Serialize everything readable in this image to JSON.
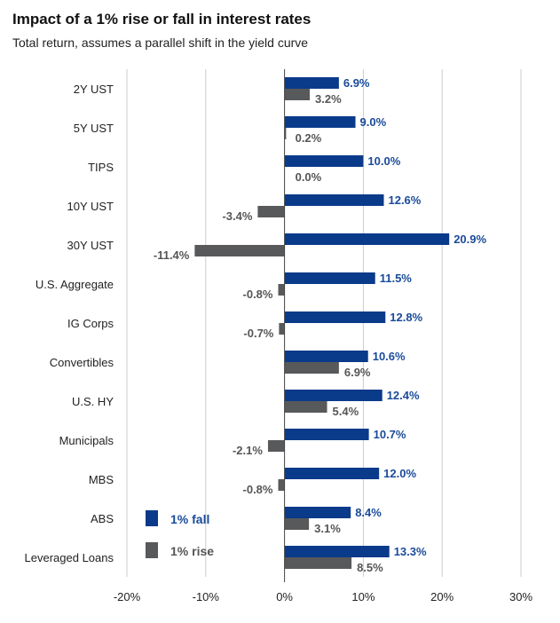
{
  "header": {
    "title": "Impact of a 1% rise or fall in interest rates",
    "subtitle": "Total return, assumes a parallel shift in the yield curve"
  },
  "colors": {
    "fall": "#0a3a8a",
    "rise": "#58595b",
    "fall_label": "#1a4b9a",
    "rise_label": "#555555",
    "grid": "#cccccc",
    "axis": "#444444"
  },
  "chart_data": {
    "type": "bar",
    "orientation": "horizontal",
    "title": "Impact of a 1% rise or fall in interest rates",
    "subtitle": "Total return, assumes a parallel shift in the yield curve",
    "categories": [
      "2Y UST",
      "5Y UST",
      "TIPS",
      "10Y UST",
      "30Y UST",
      "U.S. Aggregate",
      "IG Corps",
      "Convertibles",
      "U.S. HY",
      "Municipals",
      "MBS",
      "ABS",
      "Leveraged Loans"
    ],
    "series": [
      {
        "name": "1% fall",
        "values": [
          6.9,
          9.0,
          10.0,
          12.6,
          20.9,
          11.5,
          12.8,
          10.6,
          12.4,
          10.7,
          12.0,
          8.4,
          13.3
        ],
        "labels": [
          "6.9%",
          "9.0%",
          "10.0%",
          "12.6%",
          "20.9%",
          "11.5%",
          "12.8%",
          "10.6%",
          "12.4%",
          "10.7%",
          "12.0%",
          "8.4%",
          "13.3%"
        ]
      },
      {
        "name": "1% rise",
        "values": [
          3.2,
          0.2,
          0.0,
          -3.4,
          -11.4,
          -0.8,
          -0.7,
          6.9,
          5.4,
          -2.1,
          -0.8,
          3.1,
          8.5
        ],
        "labels": [
          "3.2%",
          "0.2%",
          "0.0%",
          "-3.4%",
          "-11.4%",
          "-0.8%",
          "-0.7%",
          "6.9%",
          "5.4%",
          "-2.1%",
          "-0.8%",
          "3.1%",
          "8.5%"
        ]
      }
    ],
    "xlim": [
      -20,
      30
    ],
    "xticks": [
      -20,
      -10,
      0,
      10,
      20,
      30
    ],
    "xtick_labels": [
      "-20%",
      "-10%",
      "0%",
      "10%",
      "20%",
      "30%"
    ],
    "grid": "vertical",
    "legend": {
      "placement": "bottom-left",
      "entries": [
        "1% fall",
        "1% rise"
      ]
    }
  }
}
